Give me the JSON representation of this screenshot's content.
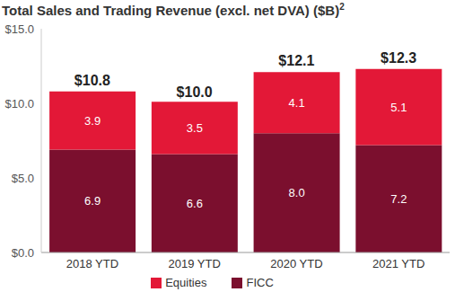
{
  "chart_data": {
    "type": "bar",
    "title": "Total Sales and Trading Revenue (excl. net DVA) ($B)",
    "title_superscript": "2",
    "categories": [
      "2018 YTD",
      "2019 YTD",
      "2020 YTD",
      "2021 YTD"
    ],
    "series": [
      {
        "name": "FICC",
        "color": "#7b0f2e",
        "values": [
          6.9,
          6.6,
          8.0,
          7.2
        ],
        "value_labels": [
          "6.9",
          "6.6",
          "8.0",
          "7.2"
        ]
      },
      {
        "name": "Equities",
        "color": "#e31837",
        "values": [
          3.9,
          3.5,
          4.1,
          5.1
        ],
        "value_labels": [
          "3.9",
          "3.5",
          "4.1",
          "5.1"
        ]
      }
    ],
    "totals": [
      10.8,
      10.0,
      12.1,
      12.3
    ],
    "total_labels": [
      "$10.8",
      "$10.0",
      "$12.1",
      "$12.3"
    ],
    "ylim": [
      0,
      15
    ],
    "yticks": [
      {
        "value": 0,
        "label": "$0.0"
      },
      {
        "value": 5,
        "label": "$5.0"
      },
      {
        "value": 10,
        "label": "$10.0"
      },
      {
        "value": 15,
        "label": "$15.0"
      }
    ],
    "stacked": true,
    "data_labels": true,
    "grid": false,
    "legend": "bottom"
  }
}
